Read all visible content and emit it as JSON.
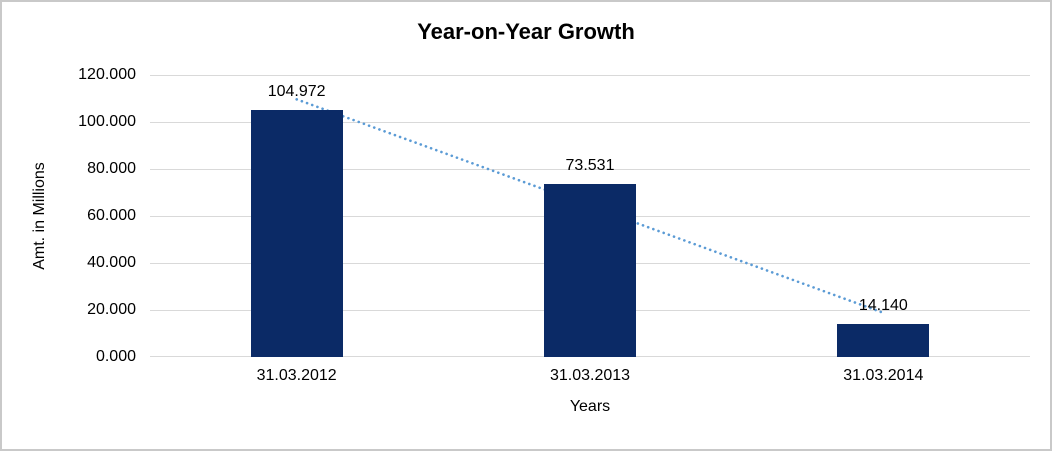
{
  "window": {
    "background": "#ffffff",
    "border_color": "#c9c9c9"
  },
  "chart_data": {
    "type": "bar",
    "title": "Year-on-Year Growth",
    "xlabel": "Years",
    "ylabel": "Amt. in Millions",
    "categories": [
      "31.03.2012",
      "31.03.2013",
      "31.03.2014"
    ],
    "values": [
      104.972,
      73.531,
      14.14
    ],
    "value_labels": [
      "104.972",
      "73.531",
      "14.140"
    ],
    "ylim": [
      0,
      120
    ],
    "y_ticks": [
      0,
      20,
      40,
      60,
      80,
      100,
      120
    ],
    "y_tick_labels": [
      "0.000",
      "20.000",
      "40.000",
      "60.000",
      "80.000",
      "100.000",
      "120.000"
    ],
    "grid": true,
    "legend": "none",
    "colors": {
      "bar": "#0b2a66",
      "gridline": "#d9d9d9",
      "trendline": "#5b9bd5",
      "text": "#000000"
    },
    "trendline": {
      "type": "linear",
      "style": "dotted",
      "color": "#5b9bd5",
      "values": [
        109.634,
        64.214,
        18.795
      ]
    }
  }
}
